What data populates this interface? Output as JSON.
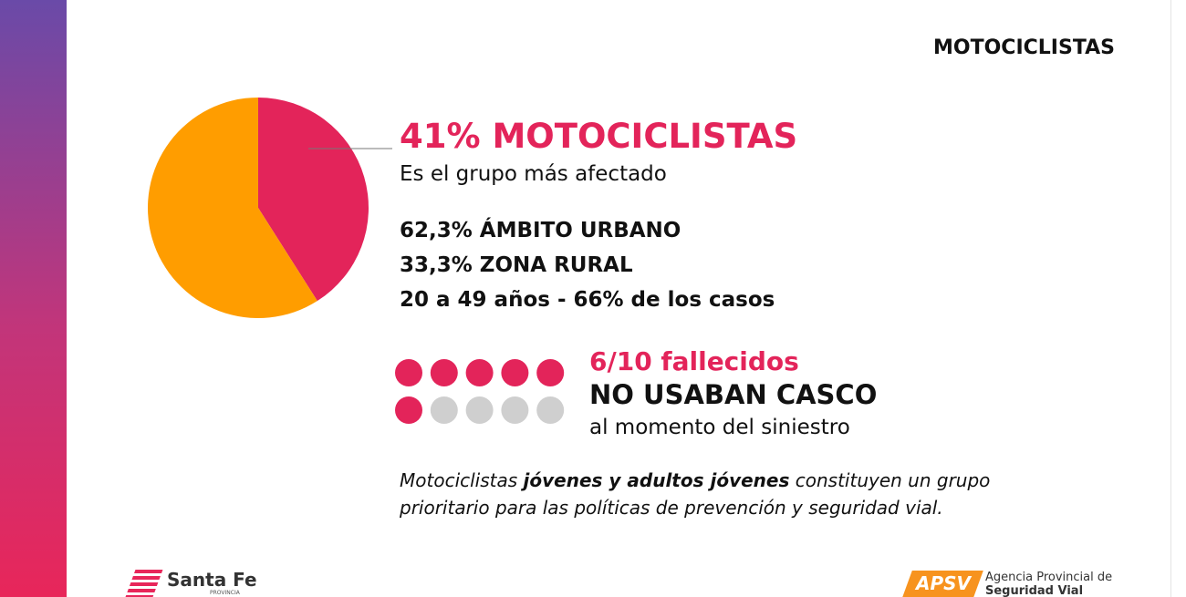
{
  "header": {
    "title": "MOTOCICLISTAS"
  },
  "pie": {
    "values": [
      41,
      59
    ],
    "colors": [
      "#e3245a",
      "#ff9d00"
    ]
  },
  "headline": {
    "title": "41% MOTOCICLISTAS",
    "subtitle": "Es el grupo más afectado"
  },
  "stats": [
    "62,3% ÁMBITO URBANO",
    "33,3% ZONA RURAL",
    "20 a 49 años - 66% de los casos"
  ],
  "dots": {
    "filled": 6,
    "total": 10,
    "filled_color": "#e3245a",
    "empty_color": "#cfcfcf"
  },
  "helmet": {
    "ratio": "6/10 fallecidos",
    "title": "NO USABAN CASCO",
    "note": "al momento del siniestro"
  },
  "paragraph": {
    "parts": [
      {
        "text": "Motociclistas ",
        "bold": false
      },
      {
        "text": "jóvenes y adultos jóvenes",
        "bold": true
      },
      {
        "text": " constituyen un grupo prioritario para las políticas de prevención y seguridad vial.",
        "bold": false
      }
    ]
  },
  "footer": {
    "left_logo": "Santa Fe",
    "left_sub": "PROVINCIA",
    "right_logo": "APSV",
    "right_line1": "Agencia Provincial de",
    "right_line2": "Seguridad Vial"
  }
}
